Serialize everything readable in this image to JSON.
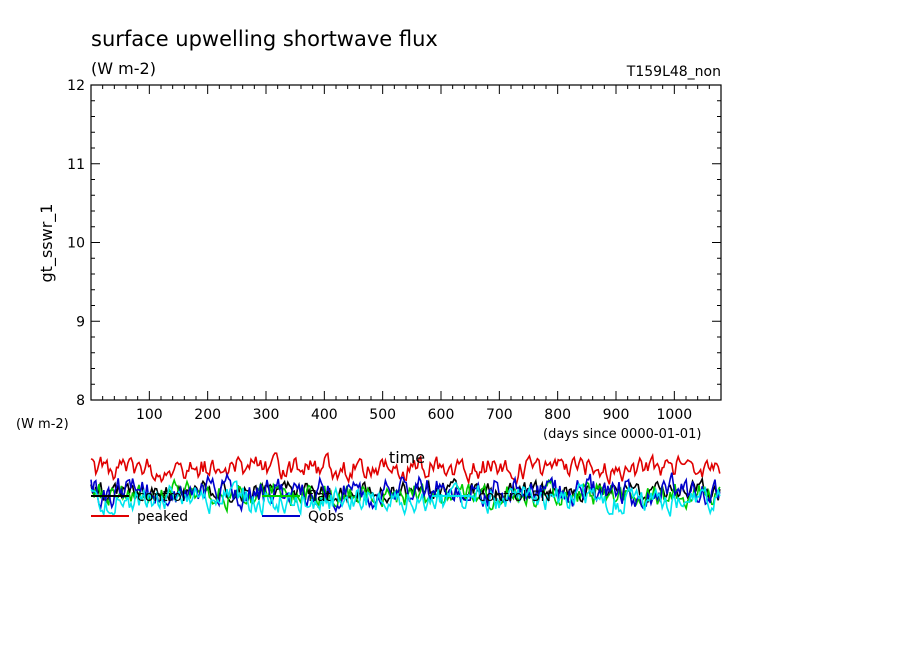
{
  "chart_data": {
    "type": "line",
    "title": "surface upwelling shortwave flux",
    "subtitle": "(W m-2)",
    "run_label": "T159L48_non",
    "ylabel": "gt_sswr_1",
    "y_unit": "(W m-2)",
    "xlabel": "time",
    "x_unit": "(days since 0000-01-01)",
    "xlim": [
      0,
      1080
    ],
    "ylim": [
      8,
      12
    ],
    "x_ticks": [
      100,
      200,
      300,
      400,
      500,
      600,
      700,
      800,
      900,
      1000
    ],
    "y_ticks": [
      8,
      9,
      10,
      11,
      12
    ],
    "grid": false,
    "legend_position": "bottom-left",
    "note": "All plotted values lie below the displayed y-range (8–12); the series traces are drawn clipped below the axes.",
    "series": [
      {
        "name": "control",
        "color": "#000000",
        "level": 0.62,
        "amplitude": 0.16
      },
      {
        "name": "flat",
        "color": "#00cc00",
        "level": 0.66,
        "amplitude": 0.2
      },
      {
        "name": "control-5N",
        "color": "#00e5ee",
        "level": 0.72,
        "amplitude": 0.22
      },
      {
        "name": "peaked",
        "color": "#e00000",
        "level": 0.3,
        "amplitude": 0.2
      },
      {
        "name": "Qobs",
        "color": "#0000cc",
        "level": 0.6,
        "amplitude": 0.24
      }
    ]
  }
}
